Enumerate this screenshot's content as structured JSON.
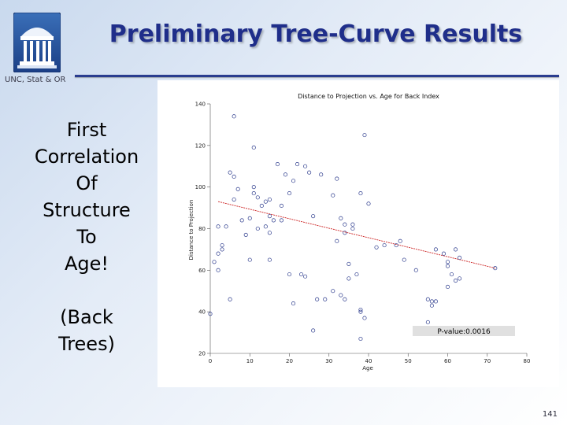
{
  "slide": {
    "title": "Preliminary Tree-Curve Results",
    "org": "UNC, Stat & OR",
    "page_number": "141",
    "logo_icon": "old-well-icon",
    "sidebar_lines": [
      "First",
      "Correlation",
      "Of",
      "Structure",
      "To",
      "Age!"
    ],
    "sidebar_note": [
      "(Back",
      "Trees)"
    ]
  },
  "colors": {
    "title": "#1f2e8a",
    "rule": "#2a3d8f",
    "points": "#2b3a8c",
    "fit_line": "#cc2222"
  },
  "chart_data": {
    "type": "scatter",
    "title": "Distance to Projection vs. Age for Back Index",
    "xlabel": "Age",
    "ylabel": "Distance to Projection",
    "xlim": [
      0,
      80
    ],
    "ylim": [
      20,
      140
    ],
    "xticks": [
      0,
      10,
      20,
      30,
      40,
      50,
      60,
      70,
      80
    ],
    "yticks": [
      20,
      40,
      60,
      80,
      100,
      120,
      140
    ],
    "xtick_labels": [
      "0",
      "10",
      "20",
      "30",
      "40",
      "50",
      "60",
      "70",
      "80"
    ],
    "ytick_labels": [
      "20",
      "40",
      "60",
      "80",
      "100",
      "120",
      "140"
    ],
    "annotation": "P-value:0.0016",
    "fit_line": {
      "x": [
        2,
        72
      ],
      "y": [
        93,
        61
      ]
    },
    "points": [
      {
        "x": 6,
        "y": 134
      },
      {
        "x": 11,
        "y": 119
      },
      {
        "x": 17,
        "y": 111
      },
      {
        "x": 19,
        "y": 106
      },
      {
        "x": 21,
        "y": 103
      },
      {
        "x": 22,
        "y": 111
      },
      {
        "x": 25,
        "y": 107
      },
      {
        "x": 24,
        "y": 110
      },
      {
        "x": 26,
        "y": 86
      },
      {
        "x": 28,
        "y": 106
      },
      {
        "x": 5,
        "y": 107
      },
      {
        "x": 6,
        "y": 105
      },
      {
        "x": 7,
        "y": 99
      },
      {
        "x": 6,
        "y": 94
      },
      {
        "x": 8,
        "y": 84
      },
      {
        "x": 10,
        "y": 85
      },
      {
        "x": 11,
        "y": 97
      },
      {
        "x": 11,
        "y": 100
      },
      {
        "x": 13,
        "y": 91
      },
      {
        "x": 12,
        "y": 95
      },
      {
        "x": 14,
        "y": 93
      },
      {
        "x": 15,
        "y": 94
      },
      {
        "x": 15,
        "y": 86
      },
      {
        "x": 16,
        "y": 84
      },
      {
        "x": 14,
        "y": 81
      },
      {
        "x": 15,
        "y": 78
      },
      {
        "x": 18,
        "y": 84
      },
      {
        "x": 18,
        "y": 91
      },
      {
        "x": 20,
        "y": 97
      },
      {
        "x": 12,
        "y": 80
      },
      {
        "x": 9,
        "y": 77
      },
      {
        "x": 2,
        "y": 81
      },
      {
        "x": 4,
        "y": 81
      },
      {
        "x": 3,
        "y": 70
      },
      {
        "x": 2,
        "y": 68
      },
      {
        "x": 1,
        "y": 64
      },
      {
        "x": 2,
        "y": 60
      },
      {
        "x": 10,
        "y": 65
      },
      {
        "x": 15,
        "y": 65
      },
      {
        "x": 3,
        "y": 72
      },
      {
        "x": 5,
        "y": 46
      },
      {
        "x": 20,
        "y": 58
      },
      {
        "x": 21,
        "y": 44
      },
      {
        "x": 23,
        "y": 58
      },
      {
        "x": 24,
        "y": 57
      },
      {
        "x": 27,
        "y": 46
      },
      {
        "x": 29,
        "y": 46
      },
      {
        "x": 31,
        "y": 50
      },
      {
        "x": 33,
        "y": 48
      },
      {
        "x": 34,
        "y": 46
      },
      {
        "x": 35,
        "y": 56
      },
      {
        "x": 37,
        "y": 58
      },
      {
        "x": 33,
        "y": 85
      },
      {
        "x": 34,
        "y": 82
      },
      {
        "x": 36,
        "y": 82
      },
      {
        "x": 34,
        "y": 78
      },
      {
        "x": 32,
        "y": 74
      },
      {
        "x": 31,
        "y": 96
      },
      {
        "x": 32,
        "y": 104
      },
      {
        "x": 36,
        "y": 80
      },
      {
        "x": 38,
        "y": 97
      },
      {
        "x": 40,
        "y": 92
      },
      {
        "x": 39,
        "y": 125
      },
      {
        "x": 42,
        "y": 71
      },
      {
        "x": 44,
        "y": 72
      },
      {
        "x": 47,
        "y": 72
      },
      {
        "x": 48,
        "y": 74
      },
      {
        "x": 49,
        "y": 65
      },
      {
        "x": 52,
        "y": 60
      },
      {
        "x": 60,
        "y": 62
      },
      {
        "x": 61,
        "y": 58
      },
      {
        "x": 63,
        "y": 56
      },
      {
        "x": 60,
        "y": 52
      },
      {
        "x": 62,
        "y": 55
      },
      {
        "x": 63,
        "y": 66
      },
      {
        "x": 62,
        "y": 70
      },
      {
        "x": 57,
        "y": 70
      },
      {
        "x": 59,
        "y": 68
      },
      {
        "x": 60,
        "y": 64
      },
      {
        "x": 38,
        "y": 41
      },
      {
        "x": 38,
        "y": 40
      },
      {
        "x": 39,
        "y": 37
      },
      {
        "x": 26,
        "y": 31
      },
      {
        "x": 38,
        "y": 27
      },
      {
        "x": 56,
        "y": 45
      },
      {
        "x": 57,
        "y": 45
      },
      {
        "x": 55,
        "y": 46
      },
      {
        "x": 55,
        "y": 35
      },
      {
        "x": 56,
        "y": 43
      },
      {
        "x": 72,
        "y": 61
      },
      {
        "x": 0,
        "y": 39
      },
      {
        "x": 35,
        "y": 63
      }
    ]
  }
}
